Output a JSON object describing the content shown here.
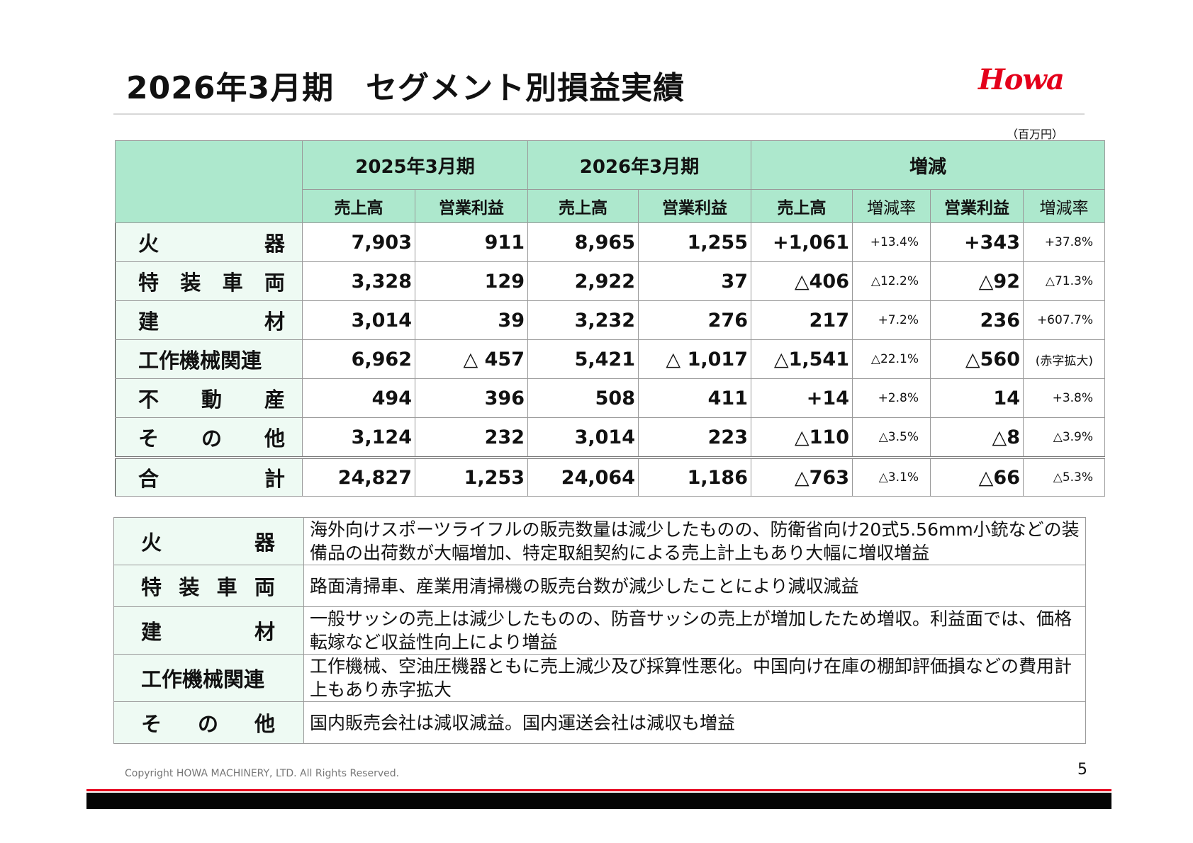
{
  "title": "2026年3月期　セグメント別損益実績",
  "logo": {
    "text": "Howa",
    "color": "#e4001b"
  },
  "unit": "（百万円）",
  "table": {
    "header": {
      "group_2025": "2025年3月期",
      "group_2026": "2026年3月期",
      "group_change": "増減",
      "sales": "売上高",
      "op_profit": "営業利益",
      "rate": "増減率"
    },
    "rows": [
      {
        "label": "火器",
        "sales25": "7,903",
        "op25": "911",
        "sales26": "8,965",
        "op26": "1,255",
        "sales_diff": "+1,061",
        "sales_rate": "+13.4%",
        "op_diff": "+343",
        "op_rate": "+37.8%"
      },
      {
        "label": "特装車両",
        "sales25": "3,328",
        "op25": "129",
        "sales26": "2,922",
        "op26": "37",
        "sales_diff": "△406",
        "sales_rate": "△12.2%",
        "op_diff": "△92",
        "op_rate": "△71.3%"
      },
      {
        "label": "建材",
        "sales25": "3,014",
        "op25": "39",
        "sales26": "3,232",
        "op26": "276",
        "sales_diff": "217",
        "sales_rate": "+7.2%",
        "op_diff": "236",
        "op_rate": "+607.7%"
      },
      {
        "label": "工作機械関連",
        "sales25": "6,962",
        "op25": "△ 457",
        "sales26": "5,421",
        "op26": "△ 1,017",
        "sales_diff": "△1,541",
        "sales_rate": "△22.1%",
        "op_diff": "△560",
        "op_rate": "(赤字拡大)"
      },
      {
        "label": "不動産",
        "sales25": "494",
        "op25": "396",
        "sales26": "508",
        "op26": "411",
        "sales_diff": "+14",
        "sales_rate": "+2.8%",
        "op_diff": "14",
        "op_rate": "+3.8%"
      },
      {
        "label": "その他",
        "sales25": "3,124",
        "op25": "232",
        "sales26": "3,014",
        "op26": "223",
        "sales_diff": "△110",
        "sales_rate": "△3.5%",
        "op_diff": "△8",
        "op_rate": "△3.9%"
      },
      {
        "label": "合計",
        "sales25": "24,827",
        "op25": "1,253",
        "sales26": "24,064",
        "op26": "1,186",
        "sales_diff": "△763",
        "sales_rate": "△3.1%",
        "op_diff": "△66",
        "op_rate": "△5.3%"
      }
    ]
  },
  "notes": [
    {
      "label": "火器",
      "text": "海外向けスポーツライフルの販売数量は減少したものの、防衛省向け20式5.56mm小銃などの装備品の出荷数が大幅増加、特定取組契約による売上計上もあり大幅に増収増益"
    },
    {
      "label": "特装車両",
      "text": "路面清掃車、産業用清掃機の販売台数が減少したことにより減収減益"
    },
    {
      "label": "建材",
      "text": "一般サッシの売上は減少したものの、防音サッシの売上が増加したため増収。利益面では、価格転嫁など収益性向上により増益"
    },
    {
      "label": "工作機械関連",
      "text": "工作機械、空油圧機器ともに売上減少及び採算性悪化。中国向け在庫の棚卸評価損などの費用計上もあり赤字拡大"
    },
    {
      "label": "その他",
      "text": "国内販売会社は減収減益。国内運送会社は減収も増益"
    }
  ],
  "footer": {
    "copyright": "Copyright HOWA MACHINERY, LTD. All Rights Reserved.",
    "page": "5"
  }
}
